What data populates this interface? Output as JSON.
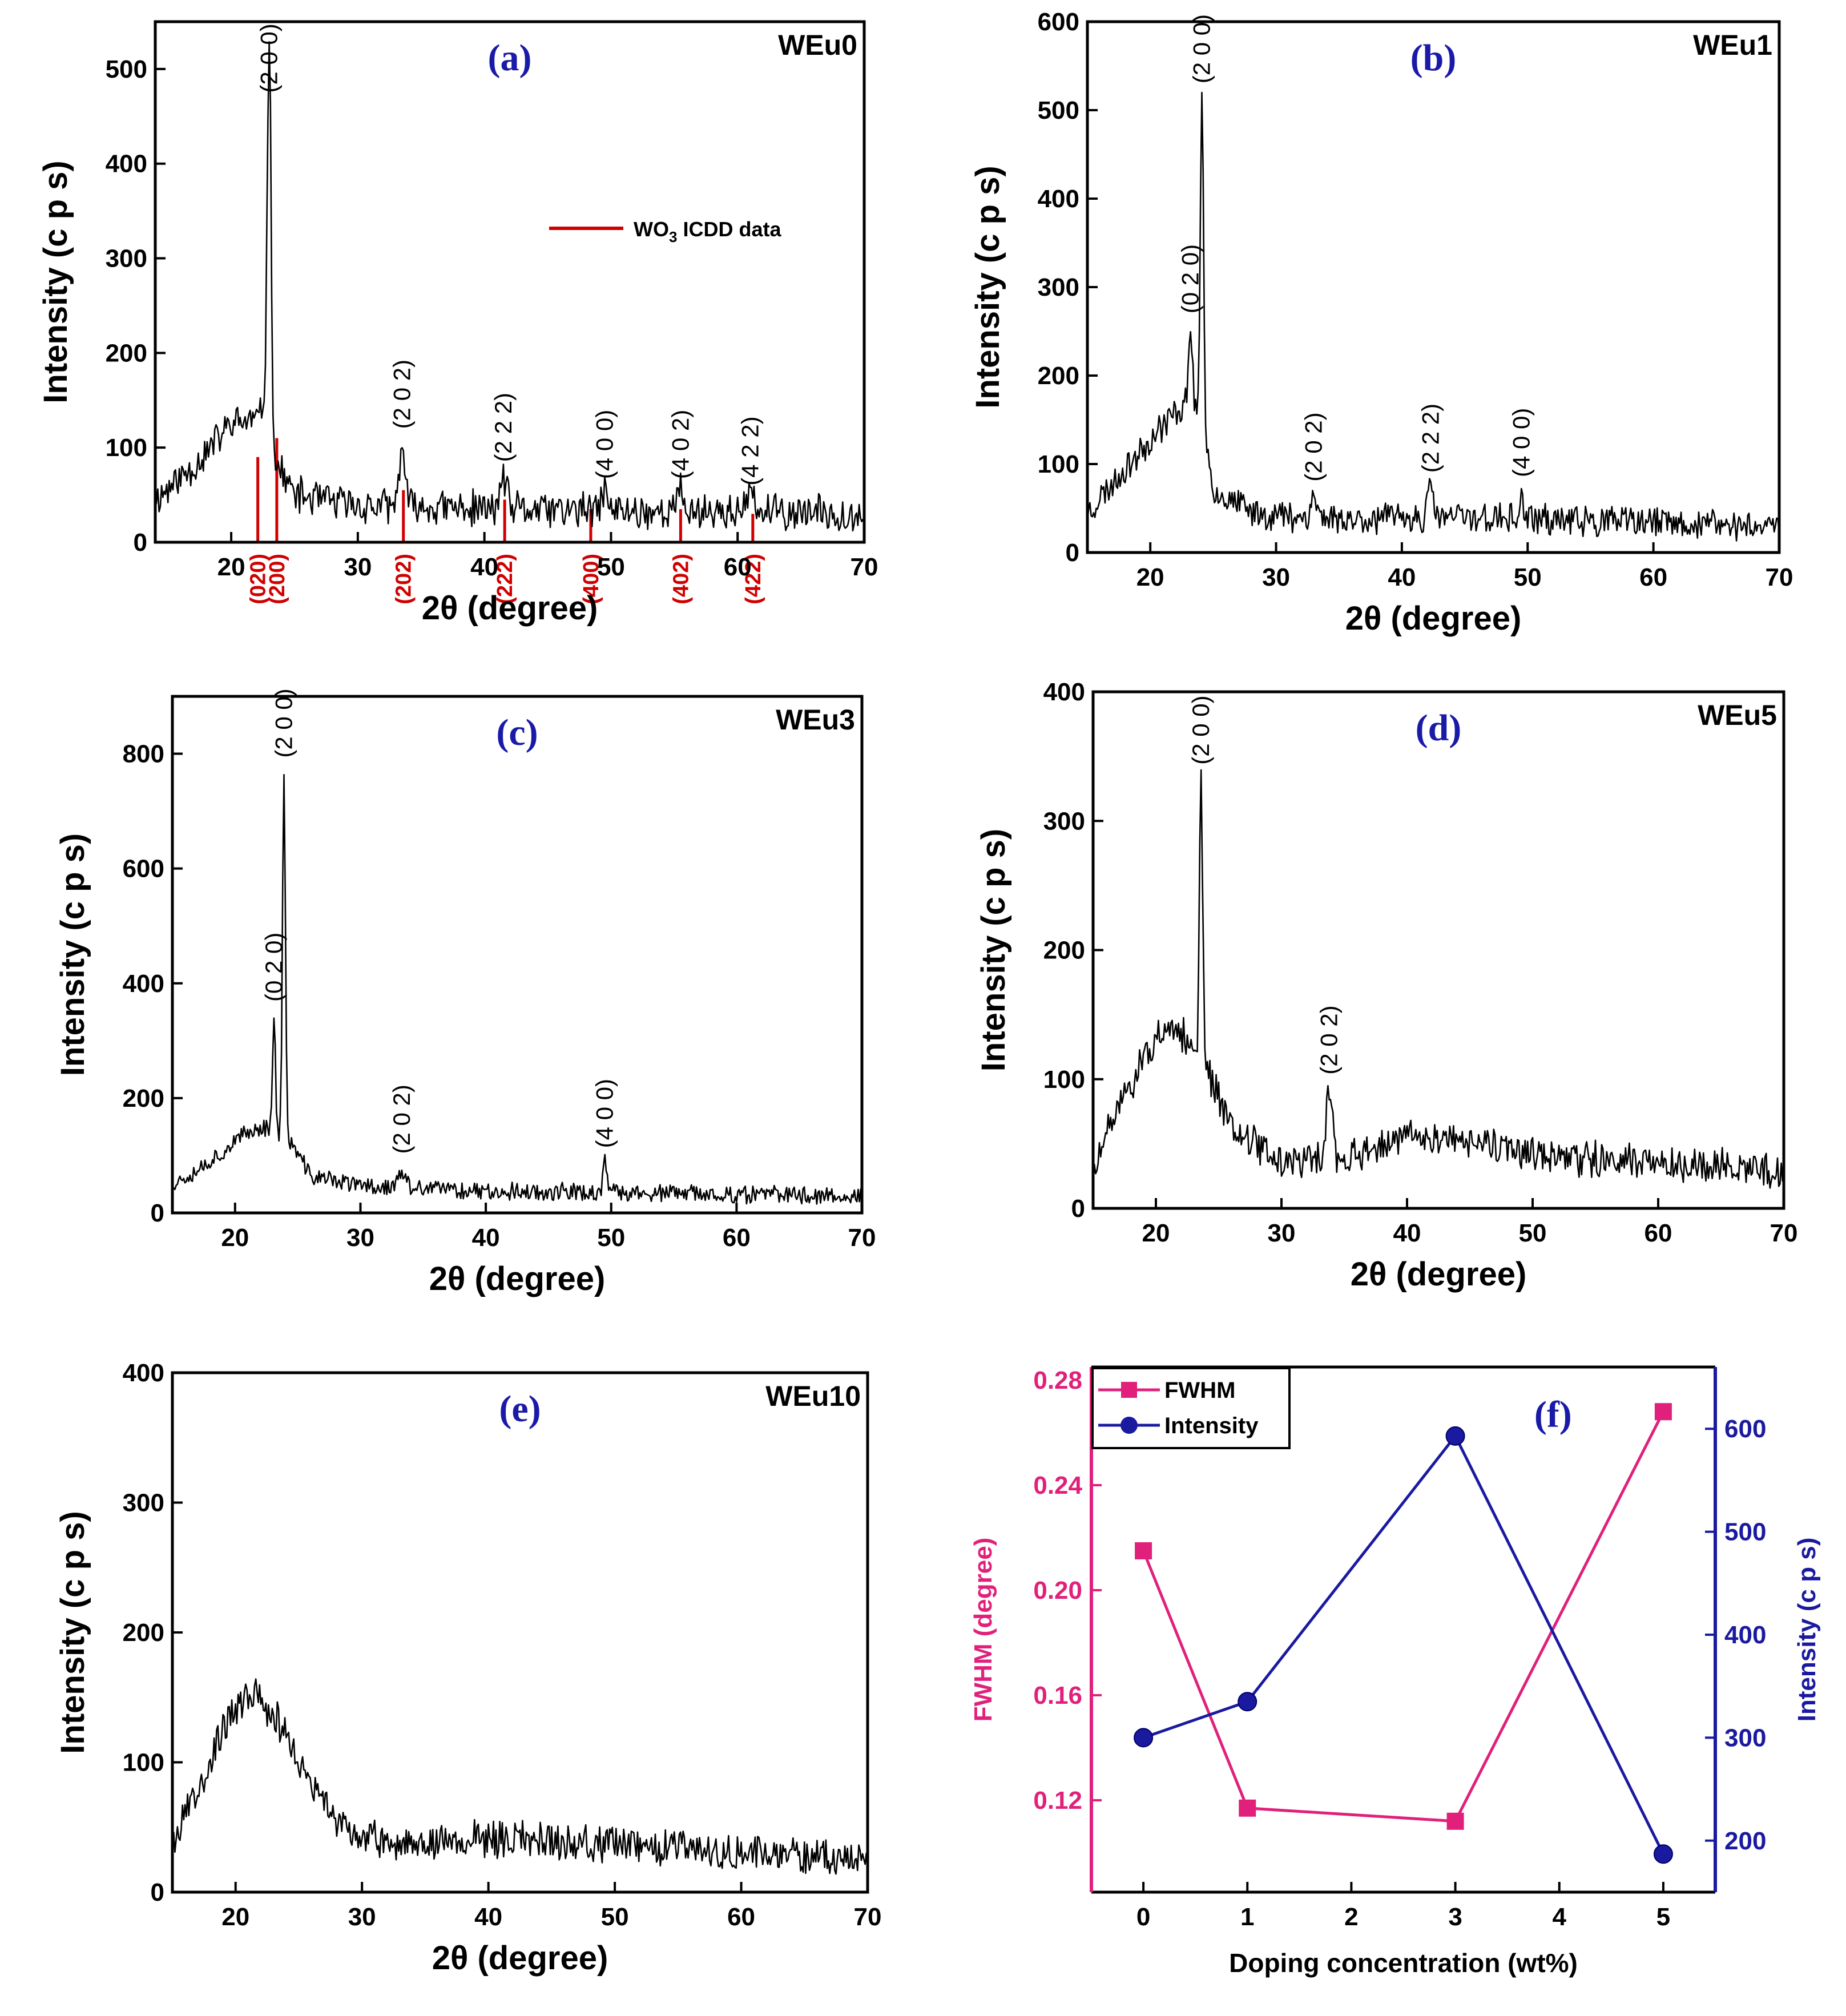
{
  "colors": {
    "trace": "#000000",
    "icdd": "#d00000",
    "panel_letter": "#1a1aa8",
    "fwhm": "#e0207a",
    "intensity": "#1a1aa0"
  },
  "chart_data": [
    {
      "id": "a",
      "type": "line",
      "panel_label": "(a)",
      "sample": "WEu0",
      "xlabel": "2θ (degree)",
      "ylabel": "Intensity (c p s)",
      "xlim": [
        14,
        70
      ],
      "ylim": [
        0,
        550
      ],
      "xticks": [
        20,
        30,
        40,
        50,
        60,
        70
      ],
      "yticks": [
        0,
        100,
        200,
        300,
        400,
        500
      ],
      "trace": {
        "start": 14,
        "end": 70,
        "step": 0.1,
        "seed": 11,
        "noise": 22,
        "background": [
          [
            14,
            45
          ],
          [
            17,
            80
          ],
          [
            20,
            125
          ],
          [
            22,
            130
          ],
          [
            23,
            95
          ],
          [
            25,
            50
          ],
          [
            30,
            38
          ],
          [
            40,
            35
          ],
          [
            50,
            33
          ],
          [
            60,
            32
          ],
          [
            70,
            30
          ]
        ],
        "peaks": [
          [
            23.0,
            440,
            0.15
          ],
          [
            22.6,
            40,
            0.2
          ],
          [
            33.5,
            65,
            0.22
          ],
          [
            41.5,
            35,
            0.25
          ],
          [
            49.5,
            25,
            0.2
          ],
          [
            55.5,
            22,
            0.25
          ],
          [
            61.0,
            20,
            0.25
          ]
        ]
      },
      "peak_labels": [
        {
          "text": "(2 0 0)",
          "x": 23.0,
          "y": 470
        },
        {
          "text": "(2 0 2)",
          "x": 33.5,
          "y": 115
        },
        {
          "text": "(2 2 2)",
          "x": 41.5,
          "y": 80
        },
        {
          "text": "(4 0 0)",
          "x": 49.5,
          "y": 62
        },
        {
          "text": "(4 0 2)",
          "x": 55.5,
          "y": 62
        },
        {
          "text": "(4 2 2)",
          "x": 61.0,
          "y": 55
        }
      ],
      "icdd": {
        "legend": "WO",
        "legend_sub": "3",
        "legend_suffix": " ICDD data",
        "lines": [
          {
            "x": 22.1,
            "h": 90,
            "label": "(020)"
          },
          {
            "x": 23.6,
            "h": 110,
            "label": "(200)"
          },
          {
            "x": 33.6,
            "h": 55,
            "label": "(202)"
          },
          {
            "x": 41.6,
            "h": 45,
            "label": "(222)"
          },
          {
            "x": 48.4,
            "h": 35,
            "label": "(400)"
          },
          {
            "x": 55.5,
            "h": 35,
            "label": "(402)"
          },
          {
            "x": 61.2,
            "h": 30,
            "label": "(422)"
          }
        ]
      }
    },
    {
      "id": "b",
      "type": "line",
      "panel_label": "(b)",
      "sample": "WEu1",
      "xlabel": "2θ (degree)",
      "ylabel": "Intensity (c p s)",
      "xlim": [
        15,
        70
      ],
      "ylim": [
        0,
        600
      ],
      "xticks": [
        20,
        30,
        40,
        50,
        60,
        70
      ],
      "yticks": [
        0,
        100,
        200,
        300,
        400,
        500,
        600
      ],
      "trace": {
        "start": 15,
        "end": 70,
        "step": 0.1,
        "seed": 23,
        "noise": 20,
        "background": [
          [
            15,
            45
          ],
          [
            18,
            95
          ],
          [
            21,
            145
          ],
          [
            23,
            170
          ],
          [
            24.3,
            150
          ],
          [
            25,
            70
          ],
          [
            28,
            45
          ],
          [
            35,
            38
          ],
          [
            45,
            40
          ],
          [
            55,
            35
          ],
          [
            70,
            30
          ]
        ],
        "peaks": [
          [
            24.1,
            370,
            0.12
          ],
          [
            23.2,
            90,
            0.15
          ],
          [
            33.0,
            22,
            0.25
          ],
          [
            42.3,
            30,
            0.25
          ],
          [
            49.5,
            30,
            0.12
          ]
        ]
      },
      "peak_labels": [
        {
          "text": "(2 0 0)",
          "x": 24.1,
          "y": 525
        },
        {
          "text": "(0 2 0)",
          "x": 23.2,
          "y": 265
        },
        {
          "text": "(2 0 2)",
          "x": 33.0,
          "y": 75
        },
        {
          "text": "(2 2 2)",
          "x": 42.3,
          "y": 85
        },
        {
          "text": "(4 0 0)",
          "x": 49.5,
          "y": 80
        }
      ]
    },
    {
      "id": "c",
      "type": "line",
      "panel_label": "(c)",
      "sample": "WEu3",
      "xlabel": "2θ (degree)",
      "ylabel": "Intensity (c p s)",
      "xlim": [
        15,
        70
      ],
      "ylim": [
        0,
        900
      ],
      "xticks": [
        20,
        30,
        40,
        50,
        60,
        70
      ],
      "yticks": [
        0,
        200,
        400,
        600,
        800
      ],
      "trace": {
        "start": 15,
        "end": 70,
        "step": 0.1,
        "seed": 37,
        "noise": 18,
        "background": [
          [
            15,
            50
          ],
          [
            18,
            90
          ],
          [
            21,
            140
          ],
          [
            22.5,
            150
          ],
          [
            24.5,
            120
          ],
          [
            26,
            65
          ],
          [
            30,
            48
          ],
          [
            40,
            38
          ],
          [
            50,
            35
          ],
          [
            60,
            32
          ],
          [
            70,
            30
          ]
        ],
        "peaks": [
          [
            23.9,
            620,
            0.12
          ],
          [
            23.1,
            200,
            0.12
          ],
          [
            33.3,
            28,
            0.25
          ],
          [
            49.5,
            55,
            0.15
          ]
        ]
      },
      "peak_labels": [
        {
          "text": "(2 0 0)",
          "x": 23.9,
          "y": 785
        },
        {
          "text": "(0 2 0)",
          "x": 23.1,
          "y": 360
        },
        {
          "text": "(2 0 2)",
          "x": 33.3,
          "y": 95
        },
        {
          "text": "(4 0 0)",
          "x": 49.5,
          "y": 105
        }
      ]
    },
    {
      "id": "d",
      "type": "line",
      "panel_label": "(d)",
      "sample": "WEu5",
      "xlabel": "2θ (degree)",
      "ylabel": "Intensity (c p s)",
      "xlim": [
        15,
        70
      ],
      "ylim": [
        0,
        400
      ],
      "xticks": [
        20,
        30,
        40,
        50,
        60,
        70
      ],
      "yticks": [
        0,
        100,
        200,
        300,
        400
      ],
      "trace": {
        "start": 15,
        "end": 70,
        "step": 0.1,
        "seed": 51,
        "noise": 16,
        "background": [
          [
            15,
            25
          ],
          [
            17,
            80
          ],
          [
            20,
            130
          ],
          [
            22,
            135
          ],
          [
            24,
            110
          ],
          [
            26,
            65
          ],
          [
            30,
            35
          ],
          [
            35,
            40
          ],
          [
            40,
            55
          ],
          [
            43,
            55
          ],
          [
            50,
            40
          ],
          [
            60,
            35
          ],
          [
            70,
            30
          ]
        ],
        "peaks": [
          [
            23.6,
            215,
            0.13
          ],
          [
            33.8,
            52,
            0.22
          ]
        ]
      },
      "peak_labels": [
        {
          "text": "(2 0 0)",
          "x": 23.6,
          "y": 340
        },
        {
          "text": "(2 0 2)",
          "x": 33.8,
          "y": 100
        }
      ]
    },
    {
      "id": "e",
      "type": "line",
      "panel_label": "(e)",
      "sample": "WEu10",
      "xlabel": "2θ (degree)",
      "ylabel": "Intensity (c p s)",
      "xlim": [
        15,
        70
      ],
      "ylim": [
        0,
        400
      ],
      "xticks": [
        20,
        30,
        40,
        50,
        60,
        70
      ],
      "yticks": [
        0,
        100,
        200,
        300,
        400
      ],
      "trace": {
        "start": 15,
        "end": 70,
        "step": 0.1,
        "seed": 67,
        "noise": 16,
        "background": [
          [
            15,
            40
          ],
          [
            17,
            80
          ],
          [
            19.5,
            135
          ],
          [
            21.5,
            155
          ],
          [
            23.5,
            130
          ],
          [
            26,
            80
          ],
          [
            29,
            45
          ],
          [
            32,
            38
          ],
          [
            38,
            40
          ],
          [
            44,
            42
          ],
          [
            50,
            35
          ],
          [
            60,
            30
          ],
          [
            70,
            28
          ]
        ],
        "peaks": []
      },
      "peak_labels": []
    },
    {
      "id": "f",
      "type": "line",
      "panel_label": "(f)",
      "xlabel": "Doping concentration (wt%)",
      "xlim": [
        -0.5,
        5.5
      ],
      "xticks": [
        0,
        1,
        2,
        3,
        4,
        5
      ],
      "x": [
        0,
        1,
        3,
        5
      ],
      "left_axis": {
        "label": "FWHM (degree)",
        "ylim": [
          0.085,
          0.285
        ],
        "yticks": [
          "0.12",
          "0.16",
          "0.20",
          "0.24",
          "0.28"
        ]
      },
      "right_axis": {
        "label": "Intensity (c p s)",
        "ylim": [
          150,
          660
        ],
        "yticks": [
          200,
          300,
          400,
          500,
          600
        ]
      },
      "series": [
        {
          "name": "FWHM",
          "axis": "left",
          "marker": "square",
          "values": [
            0.215,
            0.117,
            0.112,
            0.268
          ]
        },
        {
          "name": "Intensity",
          "axis": "right",
          "marker": "circle",
          "values": [
            300,
            335,
            593,
            187
          ]
        }
      ]
    }
  ]
}
